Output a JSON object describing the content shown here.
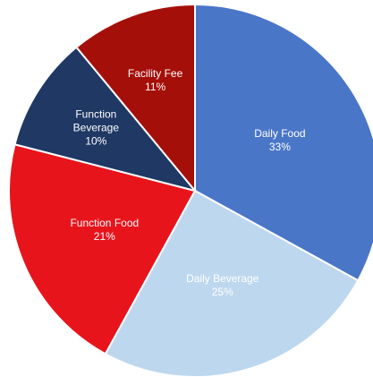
{
  "chart_data": {
    "type": "pie",
    "categories": [
      "Daily Food",
      "Daily Beverage",
      "Function Food",
      "Function Beverage",
      "Facility Fee"
    ],
    "values": [
      33,
      25,
      21,
      10,
      11
    ],
    "value_labels": [
      "33%",
      "25%",
      "21%",
      "10%",
      "11%"
    ],
    "colors": [
      "#4a76c8",
      "#bdd7ee",
      "#e8141c",
      "#1f3864",
      "#a50f0a"
    ]
  }
}
